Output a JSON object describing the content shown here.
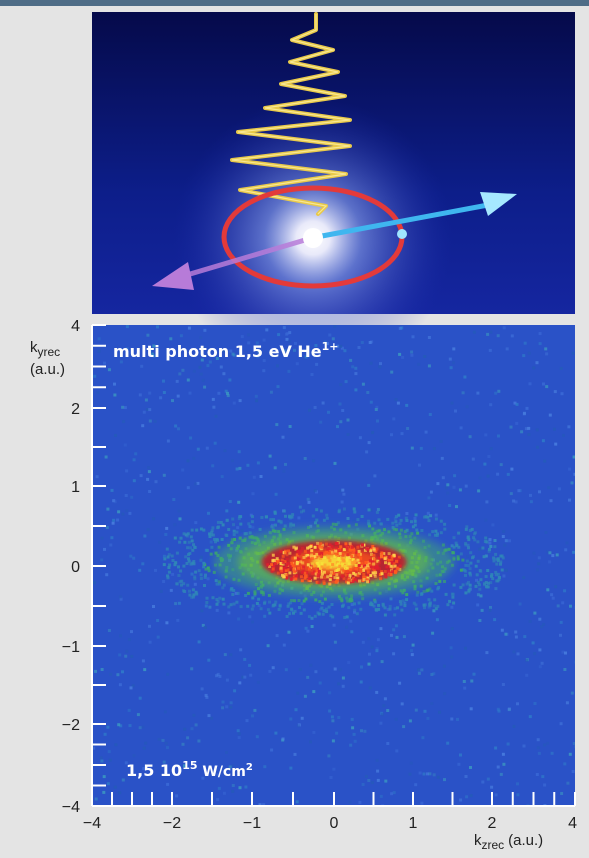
{
  "colors": {
    "top_bar": "#4f6d87",
    "background": "#e4e4e4",
    "plot_background": "#2a52c7",
    "ring": "#e33a3a",
    "wave": "#e8c94a",
    "arrow_right": "#3fb6ef",
    "arrow_left": "#b77bd8"
  },
  "illustration": {
    "elements": [
      "laser-wave",
      "atom-glow",
      "ionization-ring",
      "electron-arrow",
      "ion-arrow"
    ]
  },
  "chart_data": {
    "type": "heatmap",
    "title": "",
    "annotations": [
      {
        "text": "multi photon 1,5 eV He",
        "sup": "1+",
        "position": "top-left"
      },
      {
        "text": "1,5 10",
        "sup": "15",
        "tail": " W/cm",
        "tail_sup": "2",
        "position": "bottom-left"
      }
    ],
    "xlabel_main": "k",
    "xlabel_sub": "zrec",
    "xlabel_unit": "(a.u.)",
    "ylabel_main": "k",
    "ylabel_sub": "yrec",
    "ylabel_unit": "(a.u.)",
    "xlim": [
      -4,
      4
    ],
    "ylim": [
      -4,
      4
    ],
    "axis_scale": "nonlinear",
    "x_ticks": [
      {
        "value": -4,
        "label": "−4"
      },
      {
        "value": -2,
        "label": "−2"
      },
      {
        "value": -1,
        "label": "−1"
      },
      {
        "value": 0,
        "label": "0"
      },
      {
        "value": 1,
        "label": "1"
      },
      {
        "value": 2,
        "label": "2"
      },
      {
        "value": 4,
        "label": "4"
      }
    ],
    "y_ticks": [
      {
        "value": 4,
        "label": "4"
      },
      {
        "value": 2,
        "label": "2"
      },
      {
        "value": 1,
        "label": "1"
      },
      {
        "value": 0,
        "label": "0"
      },
      {
        "value": -1,
        "label": "−1"
      },
      {
        "value": -2,
        "label": "−2"
      },
      {
        "value": -4,
        "label": "−4"
      }
    ],
    "minor_ticks": [
      -3.5,
      -3,
      -2.5,
      -1.5,
      -0.5,
      0.5,
      1.5,
      2.5,
      3,
      3.5
    ],
    "distribution": {
      "center": [
        0,
        0.05
      ],
      "contours": [
        {
          "level": "background",
          "color": "#2a52c7"
        },
        {
          "level": "low",
          "color": "#3fa27a",
          "half_width": 1.5,
          "half_height": 0.45
        },
        {
          "level": "mid",
          "color": "#6bc43a",
          "half_width": 1.2,
          "half_height": 0.35
        },
        {
          "level": "high",
          "color": "#c0152f",
          "half_width": 0.9,
          "half_height": 0.27
        },
        {
          "level": "peak",
          "color": "#f04d1c",
          "half_width": 0.55,
          "half_height": 0.17
        },
        {
          "level": "max",
          "color": "#f7e238",
          "half_width": 0.28,
          "half_height": 0.09
        }
      ]
    }
  }
}
